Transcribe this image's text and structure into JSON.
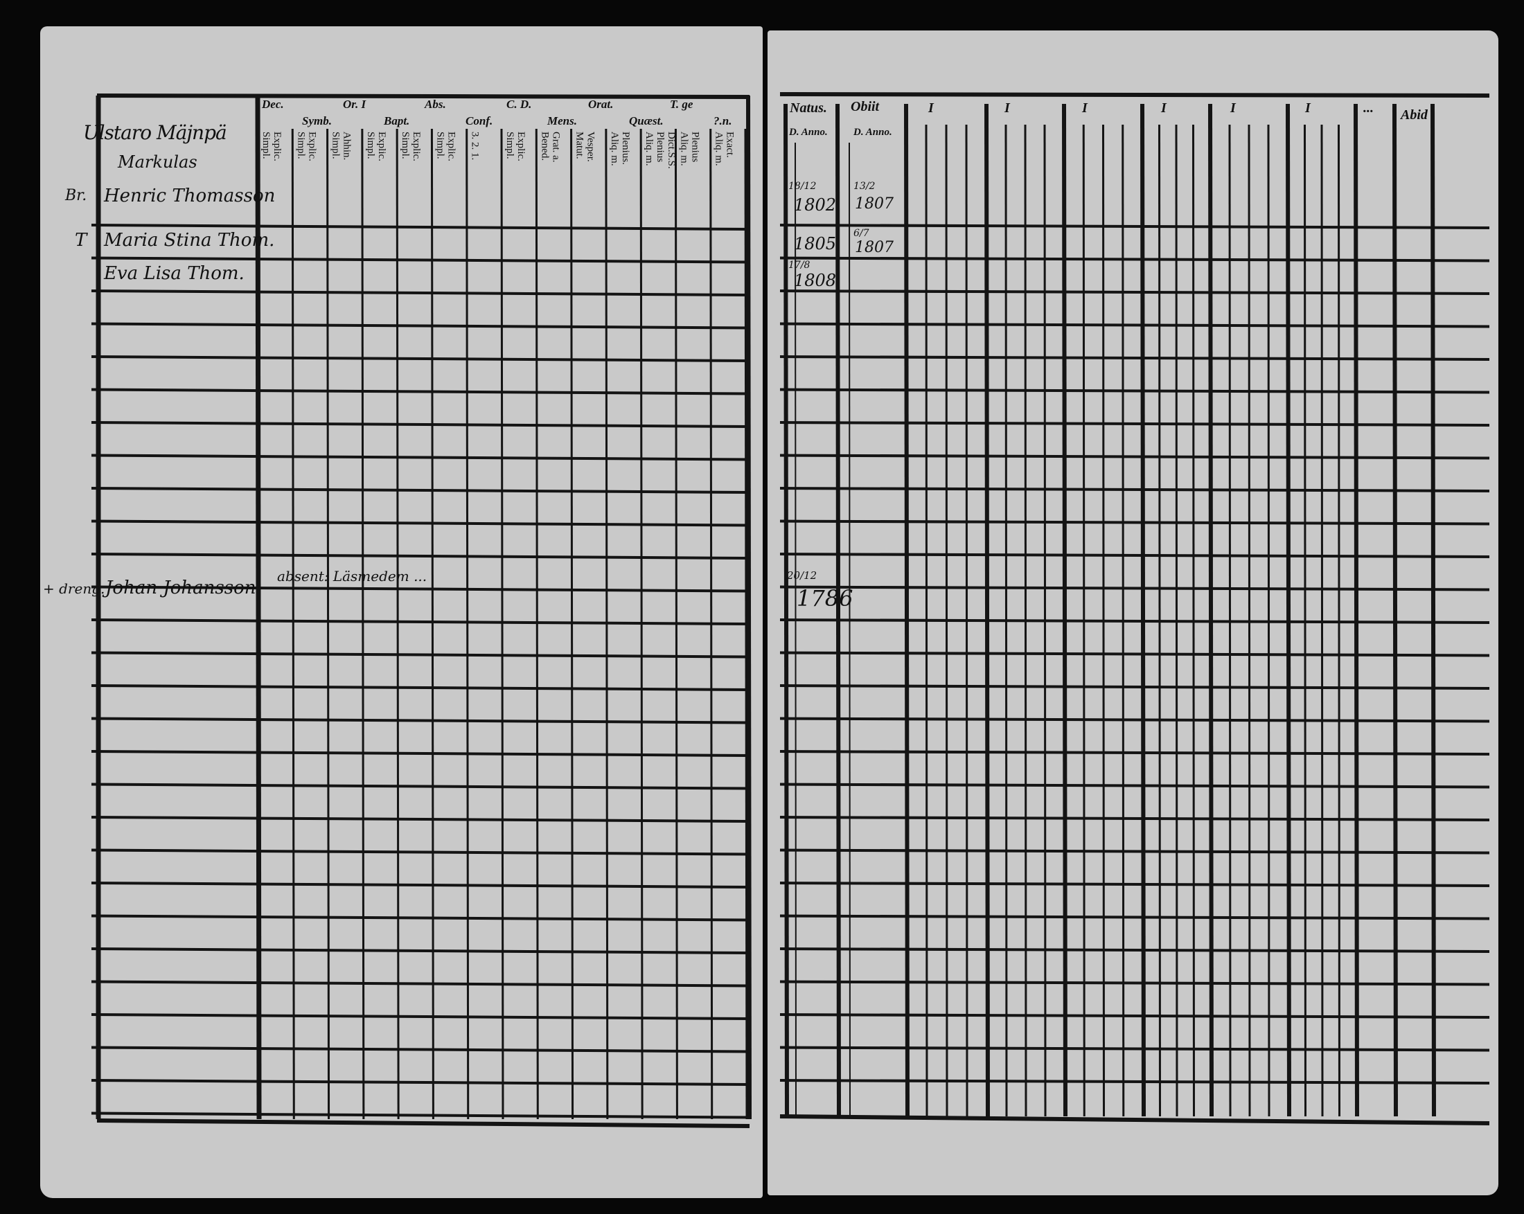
{
  "left_page": {
    "title": "Ulstaro Mäjnpä",
    "subtitle": "Markulas",
    "column_headers": [
      "Dec.",
      "Symb.",
      "Or. I",
      "Bapt.",
      "Abs.",
      "Conf.",
      "C. D.",
      "Mens.",
      "Orat.",
      "Quæst.",
      "T. ge",
      "?.n."
    ],
    "sub_headers": [
      "Explic. Simpl.",
      "Explic. Simpl.",
      "Ahhin. Simpl.",
      "Explic. Simpl.",
      "Explic. Simpl.",
      "Explic. Simpl.",
      "3. 2. 1.",
      "Explic. Simpl.",
      "Grat. a. Bened.",
      "Vesper. Matut.",
      "Plenius. Aliq. m.",
      "Dict.S.S. Plenius Aliq. m.",
      "Plenius Aliq. m.",
      "Exact. Aliq. m."
    ],
    "entries": [
      {
        "mark": "Br.",
        "name": "Henric Thomasson"
      },
      {
        "mark": "T",
        "name": "Maria Stina Thom."
      },
      {
        "mark": "",
        "name": "Eva Lisa Thom."
      },
      {
        "mark": "+ dreng.",
        "name": "Johan Johansson",
        "note": "absent: Läsmedem ..."
      }
    ]
  },
  "right_page": {
    "column_headers": [
      "Natus.",
      "Obiit",
      "I",
      "I",
      "I",
      "I",
      "I",
      "I",
      "...",
      "Abid"
    ],
    "sub_headers": [
      "D. Anno.",
      "D. Anno."
    ],
    "entries": [
      {
        "born_day": "18/12",
        "born_year": "1802",
        "died_day": "13/2",
        "died_year": "1807"
      },
      {
        "born_day": "",
        "born_year": "1805",
        "died_day": "6/7",
        "died_year": "1807"
      },
      {
        "born_day": "17/8",
        "born_year": "1808",
        "died_day": "",
        "died_year": ""
      },
      {
        "born_day": "20/12",
        "born_year": "1786",
        "died_day": "",
        "died_year": ""
      }
    ]
  }
}
